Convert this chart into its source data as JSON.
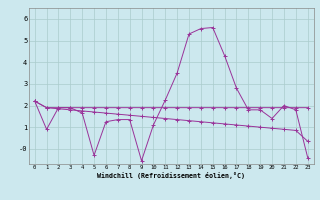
{
  "xlabel": "Windchill (Refroidissement éolien,°C)",
  "background_color": "#cce8ee",
  "grid_color": "#aacccc",
  "line_color": "#993399",
  "xlim": [
    -0.5,
    23.5
  ],
  "ylim": [
    -0.7,
    6.5
  ],
  "yticks": [
    0,
    1,
    2,
    3,
    4,
    5,
    6
  ],
  "ytick_labels": [
    "-0",
    "1",
    "2",
    "3",
    "4",
    "5",
    "6"
  ],
  "xticks": [
    0,
    1,
    2,
    3,
    4,
    5,
    6,
    7,
    8,
    9,
    10,
    11,
    12,
    13,
    14,
    15,
    16,
    17,
    18,
    19,
    20,
    21,
    22,
    23
  ],
  "series": [
    [
      2.2,
      0.9,
      1.9,
      1.9,
      1.65,
      -0.3,
      1.25,
      1.35,
      1.35,
      -0.55,
      1.1,
      2.25,
      3.5,
      5.3,
      5.55,
      5.6,
      4.3,
      2.8,
      1.8,
      1.8,
      1.4,
      2.0,
      1.8,
      -0.4
    ],
    [
      2.2,
      1.9,
      1.9,
      1.9,
      1.9,
      1.9,
      1.9,
      1.9,
      1.9,
      1.9,
      1.9,
      1.9,
      1.9,
      1.9,
      1.9,
      1.9,
      1.9,
      1.9,
      1.9,
      1.9,
      1.9,
      1.9,
      1.9,
      1.9
    ],
    [
      2.2,
      1.9,
      1.85,
      1.8,
      1.75,
      1.7,
      1.65,
      1.6,
      1.55,
      1.5,
      1.45,
      1.4,
      1.35,
      1.3,
      1.25,
      1.2,
      1.15,
      1.1,
      1.05,
      1.0,
      0.95,
      0.9,
      0.85,
      0.35
    ]
  ]
}
